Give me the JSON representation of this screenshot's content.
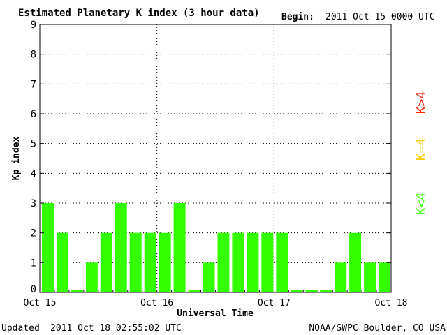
{
  "chart_data": {
    "type": "bar",
    "title": "Estimated Planetary K index (3 hour data)",
    "begin_label": "Begin:",
    "begin_value": "2011 Oct 15 0000 UTC",
    "xlabel": "Universal Time",
    "ylabel": "Kp index",
    "ylim": [
      0,
      9
    ],
    "yticks": [
      "0",
      "1",
      "2",
      "3",
      "4",
      "5",
      "6",
      "7",
      "8",
      "9"
    ],
    "xtick_labels": [
      "Oct 15",
      "Oct 16",
      "Oct 17",
      "Oct 18"
    ],
    "grid": true,
    "values": [
      3,
      2,
      0.07,
      1,
      2,
      3,
      2,
      2,
      2,
      3,
      0.07,
      1,
      2,
      2,
      2,
      2,
      2,
      0.07,
      0.07,
      0.07,
      1,
      2,
      1,
      1
    ],
    "bar_color": "#33ff00",
    "legend": [
      {
        "label": "K<4",
        "color": "#33ff00"
      },
      {
        "label": "K=4",
        "color": "#ffcc00"
      },
      {
        "label": "K>4",
        "color": "#ff2200"
      }
    ]
  },
  "footer": {
    "updated_label": "Updated",
    "updated_value": "2011 Oct 18 02:55:02 UTC",
    "source": "NOAA/SWPC Boulder, CO USA"
  }
}
